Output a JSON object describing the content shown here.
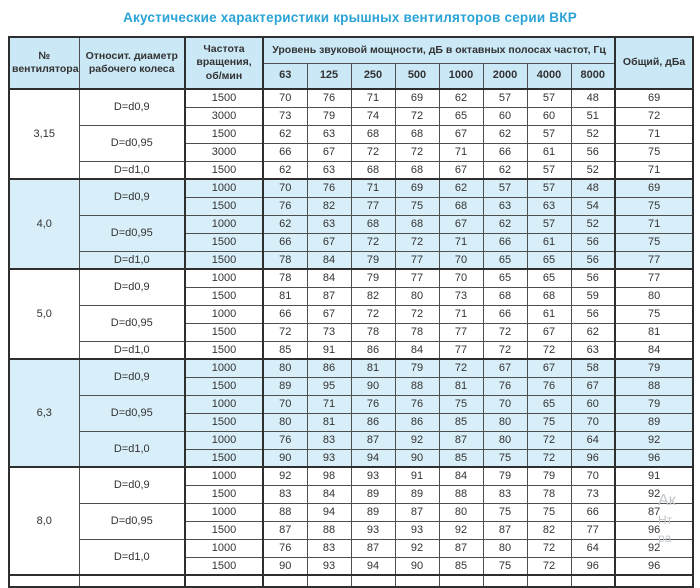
{
  "title": "Акустические характеристики крышных вентиляторов серии ВКР",
  "colors": {
    "accent": "#2aa3d6",
    "header_bg": "#cbe8f6",
    "band_bg": "#d8eef8",
    "border": "#4f4f4f",
    "border_dark": "#2e2e2e",
    "text": "#333333",
    "watermark": "#bfc5c9"
  },
  "watermark": {
    "lines": [
      "Ак",
      "Нт",
      "ра"
    ]
  },
  "table": {
    "headers": {
      "fan": "№ вентилятора",
      "diameter": "Относит. диаметр рабочего колеса",
      "speed": "Частота вращения, об/мин",
      "group": "Уровень звуковой мощности, дБ в октавных полосах частот, Гц",
      "freqs": [
        "63",
        "125",
        "250",
        "500",
        "1000",
        "2000",
        "4000",
        "8000"
      ],
      "total": "Общий, дБа"
    },
    "sections": [
      {
        "fan": "3,15",
        "shaded": false,
        "groups": [
          {
            "d": "D=d0,9",
            "rows": [
              {
                "rpm": "1500",
                "v": [
                  70,
                  76,
                  71,
                  69,
                  62,
                  57,
                  57,
                  48
                ],
                "total": 69
              },
              {
                "rpm": "3000",
                "v": [
                  73,
                  79,
                  74,
                  72,
                  65,
                  60,
                  60,
                  51
                ],
                "total": 72
              }
            ]
          },
          {
            "d": "D=d0,95",
            "rows": [
              {
                "rpm": "1500",
                "v": [
                  62,
                  63,
                  68,
                  68,
                  67,
                  62,
                  57,
                  52
                ],
                "total": 71
              },
              {
                "rpm": "3000",
                "v": [
                  66,
                  67,
                  72,
                  72,
                  71,
                  66,
                  61,
                  56
                ],
                "total": 75
              }
            ]
          },
          {
            "d": "D=d1,0",
            "rows": [
              {
                "rpm": "1500",
                "v": [
                  62,
                  63,
                  68,
                  68,
                  67,
                  62,
                  57,
                  52
                ],
                "total": 71
              }
            ]
          }
        ]
      },
      {
        "fan": "4,0",
        "shaded": true,
        "groups": [
          {
            "d": "D=d0,9",
            "rows": [
              {
                "rpm": "1000",
                "v": [
                  70,
                  76,
                  71,
                  69,
                  62,
                  57,
                  57,
                  48
                ],
                "total": 69
              },
              {
                "rpm": "1500",
                "v": [
                  76,
                  82,
                  77,
                  75,
                  68,
                  63,
                  63,
                  54
                ],
                "total": 75
              }
            ]
          },
          {
            "d": "D=d0,95",
            "rows": [
              {
                "rpm": "1000",
                "v": [
                  62,
                  63,
                  68,
                  68,
                  67,
                  62,
                  57,
                  52
                ],
                "total": 71
              },
              {
                "rpm": "1500",
                "v": [
                  66,
                  67,
                  72,
                  72,
                  71,
                  66,
                  61,
                  56
                ],
                "total": 75
              }
            ]
          },
          {
            "d": "D=d1,0",
            "rows": [
              {
                "rpm": "1500",
                "v": [
                  78,
                  84,
                  79,
                  77,
                  70,
                  65,
                  65,
                  56
                ],
                "total": 77
              }
            ]
          }
        ]
      },
      {
        "fan": "5,0",
        "shaded": false,
        "groups": [
          {
            "d": "D=d0,9",
            "rows": [
              {
                "rpm": "1000",
                "v": [
                  78,
                  84,
                  79,
                  77,
                  70,
                  65,
                  65,
                  56
                ],
                "total": 77
              },
              {
                "rpm": "1500",
                "v": [
                  81,
                  87,
                  82,
                  80,
                  73,
                  68,
                  68,
                  59
                ],
                "total": 80
              }
            ]
          },
          {
            "d": "D=d0,95",
            "rows": [
              {
                "rpm": "1000",
                "v": [
                  66,
                  67,
                  72,
                  72,
                  71,
                  66,
                  61,
                  56
                ],
                "total": 75
              },
              {
                "rpm": "1500",
                "v": [
                  72,
                  73,
                  78,
                  78,
                  77,
                  72,
                  67,
                  62
                ],
                "total": 81
              }
            ]
          },
          {
            "d": "D=d1,0",
            "rows": [
              {
                "rpm": "1500",
                "v": [
                  85,
                  91,
                  86,
                  84,
                  77,
                  72,
                  72,
                  63
                ],
                "total": 84
              }
            ]
          }
        ]
      },
      {
        "fan": "6,3",
        "shaded": true,
        "groups": [
          {
            "d": "D=d0,9",
            "rows": [
              {
                "rpm": "1000",
                "v": [
                  80,
                  86,
                  81,
                  79,
                  72,
                  67,
                  67,
                  58
                ],
                "total": 79
              },
              {
                "rpm": "1500",
                "v": [
                  89,
                  95,
                  90,
                  88,
                  81,
                  76,
                  76,
                  67
                ],
                "total": 88
              }
            ]
          },
          {
            "d": "D=d0,95",
            "rows": [
              {
                "rpm": "1000",
                "v": [
                  70,
                  71,
                  76,
                  76,
                  75,
                  70,
                  65,
                  60
                ],
                "total": 79
              },
              {
                "rpm": "1500",
                "v": [
                  80,
                  81,
                  86,
                  86,
                  85,
                  80,
                  75,
                  70
                ],
                "total": 89
              }
            ]
          },
          {
            "d": "D=d1,0",
            "rows": [
              {
                "rpm": "1000",
                "v": [
                  76,
                  83,
                  87,
                  92,
                  87,
                  80,
                  72,
                  64
                ],
                "total": 92
              },
              {
                "rpm": "1500",
                "v": [
                  90,
                  93,
                  94,
                  90,
                  85,
                  75,
                  72,
                  96
                ],
                "total": 96
              }
            ]
          }
        ]
      },
      {
        "fan": "8,0",
        "shaded": false,
        "groups": [
          {
            "d": "D=d0,9",
            "rows": [
              {
                "rpm": "1000",
                "v": [
                  92,
                  98,
                  93,
                  91,
                  84,
                  79,
                  79,
                  70
                ],
                "total": 91
              },
              {
                "rpm": "1500",
                "v": [
                  83,
                  84,
                  89,
                  89,
                  88,
                  83,
                  78,
                  73
                ],
                "total": 92
              }
            ]
          },
          {
            "d": "D=d0,95",
            "rows": [
              {
                "rpm": "1000",
                "v": [
                  88,
                  94,
                  89,
                  87,
                  80,
                  75,
                  75,
                  66
                ],
                "total": 87
              },
              {
                "rpm": "1500",
                "v": [
                  87,
                  88,
                  93,
                  93,
                  92,
                  87,
                  82,
                  77
                ],
                "total": 96
              }
            ]
          },
          {
            "d": "D=d1,0",
            "rows": [
              {
                "rpm": "1000",
                "v": [
                  76,
                  83,
                  87,
                  92,
                  87,
                  80,
                  72,
                  64
                ],
                "total": 92
              },
              {
                "rpm": "1500",
                "v": [
                  90,
                  93,
                  94,
                  90,
                  85,
                  75,
                  72,
                  96
                ],
                "total": 96
              }
            ]
          }
        ]
      }
    ]
  }
}
